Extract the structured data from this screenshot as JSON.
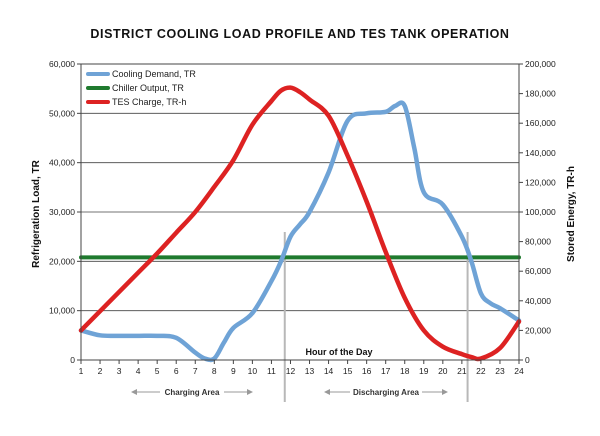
{
  "chart_data": {
    "type": "line",
    "title": "DISTRICT COOLING LOAD PROFILE AND TES TANK OPERATION",
    "xlabel": "Hour of the Day",
    "ylabel_left": "Refrigeration Load, TR",
    "ylabel_right": "Stored Energy, TR-h",
    "x_ticks": [
      1,
      2,
      3,
      4,
      5,
      6,
      7,
      8,
      9,
      10,
      11,
      12,
      13,
      14,
      15,
      16,
      17,
      18,
      19,
      20,
      21,
      22,
      23,
      24
    ],
    "xlim": [
      1,
      24
    ],
    "ylim_left": [
      0,
      60000
    ],
    "ylim_right": [
      0,
      200000
    ],
    "y_ticks_left": [
      "0",
      "10,000",
      "20,000",
      "30,000",
      "40,000",
      "50,000",
      "60,000"
    ],
    "y_ticks_right": [
      "0",
      "20,000",
      "40,000",
      "60,000",
      "80,000",
      "100,000",
      "120,000",
      "140,000",
      "160,000",
      "180,000",
      "200,000"
    ],
    "legend_position": "top-left",
    "grid": true,
    "series": [
      {
        "name": "Cooling Demand, TR",
        "axis": "left",
        "color": "#6fa3d6",
        "x": [
          1,
          2,
          3,
          4,
          5,
          6,
          7,
          7.5,
          8,
          8.5,
          9,
          10,
          11,
          11.5,
          12,
          12.5,
          13,
          14,
          15,
          16,
          17,
          17.5,
          18,
          18.5,
          19,
          20,
          21,
          21.5,
          22,
          22.5,
          23,
          24
        ],
        "values": [
          6000,
          5000,
          4900,
          4900,
          4900,
          4500,
          1500,
          300,
          300,
          3500,
          6500,
          9500,
          16000,
          20000,
          25000,
          27500,
          30000,
          38000,
          48500,
          50000,
          50300,
          51500,
          51500,
          43000,
          34000,
          31500,
          25000,
          20000,
          13500,
          11500,
          10500,
          8000
        ]
      },
      {
        "name": "Chiller Output, TR",
        "axis": "left",
        "color": "#1f7a2e",
        "x": [
          1,
          24
        ],
        "values": [
          20800,
          20800
        ]
      },
      {
        "name": "TES Charge, TR-h",
        "axis": "right",
        "color": "#dd2222",
        "x": [
          1,
          2,
          3,
          4,
          5,
          6,
          7,
          8,
          9,
          10,
          11,
          11.5,
          12,
          12.5,
          13,
          14,
          15,
          16,
          17,
          18,
          19,
          20,
          21,
          21.5,
          22,
          23,
          24
        ],
        "values": [
          20000,
          33000,
          46000,
          59000,
          72000,
          86000,
          100000,
          117000,
          135000,
          159000,
          175000,
          182000,
          184000,
          181000,
          176000,
          165000,
          138000,
          107000,
          73000,
          42000,
          20000,
          9000,
          4000,
          2000,
          1000,
          8000,
          26000
        ]
      }
    ],
    "annotations": {
      "charging": "Charging Area",
      "discharging": "Discharging Area"
    },
    "vertical_markers": [
      11.7,
      21.3
    ]
  }
}
